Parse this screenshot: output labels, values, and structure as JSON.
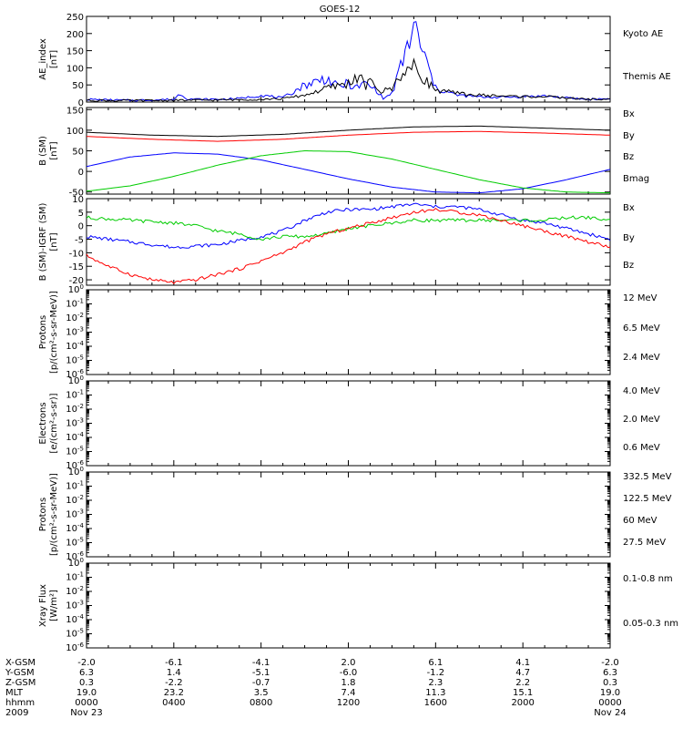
{
  "title": "GOES-12",
  "chart_data": [
    {
      "type": "line",
      "panel": "ae",
      "ylabel": [
        "AE_index",
        "[nT]"
      ],
      "ylim": [
        0,
        250
      ],
      "yticks": [
        "0",
        "50",
        "100",
        "150",
        "200",
        "250"
      ],
      "legend": [
        {
          "name": "Kyoto AE",
          "color": "#0000ff"
        },
        {
          "name": "Themis AE",
          "color": "#000000"
        }
      ],
      "series": [
        {
          "name": "Kyoto AE",
          "color": "#0000ff",
          "x": [
            0,
            1,
            2,
            3,
            4,
            4.3,
            4.6,
            5,
            6,
            7,
            8,
            9,
            10,
            10.5,
            11,
            11.5,
            12,
            12.3,
            12.6,
            12.8,
            13,
            13.3,
            13.6,
            14,
            14.5,
            15,
            16,
            17,
            18,
            19,
            20,
            21,
            22,
            23,
            24
          ],
          "y": [
            8,
            6,
            5,
            6,
            8,
            25,
            10,
            8,
            8,
            10,
            20,
            12,
            50,
            60,
            70,
            45,
            55,
            40,
            50,
            55,
            45,
            35,
            10,
            25,
            120,
            220,
            40,
            20,
            15,
            14,
            16,
            18,
            12,
            8,
            10
          ]
        },
        {
          "name": "Themis AE",
          "color": "#000000",
          "x": [
            0,
            2,
            4,
            6,
            8,
            9,
            10,
            11,
            12,
            12.5,
            12.8,
            13,
            13.5,
            14,
            14.5,
            15,
            16,
            17,
            18,
            19,
            20,
            21,
            22,
            23,
            24
          ],
          "y": [
            5,
            4,
            5,
            6,
            8,
            10,
            20,
            40,
            55,
            75,
            45,
            60,
            30,
            40,
            90,
            100,
            35,
            25,
            20,
            18,
            16,
            16,
            12,
            8,
            8
          ]
        }
      ]
    },
    {
      "type": "line",
      "panel": "bsm",
      "ylabel": [
        "B (SM)",
        "[nT]"
      ],
      "ylim": [
        -55,
        155
      ],
      "yticks": [
        "-50",
        "0",
        "50",
        "100",
        "150"
      ],
      "legend": [
        {
          "name": "Bx",
          "color": "#0000ff"
        },
        {
          "name": "By",
          "color": "#00cc00"
        },
        {
          "name": "Bz",
          "color": "#ff0000"
        },
        {
          "name": "Bmag",
          "color": "#000000"
        }
      ],
      "series": [
        {
          "name": "Bmag",
          "color": "#000000",
          "x": [
            0,
            3,
            6,
            9,
            12,
            15,
            18,
            21,
            24
          ],
          "y": [
            95,
            88,
            85,
            90,
            100,
            108,
            110,
            105,
            100
          ]
        },
        {
          "name": "Bz",
          "color": "#ff0000",
          "x": [
            0,
            3,
            6,
            9,
            12,
            15,
            18,
            21,
            24
          ],
          "y": [
            85,
            78,
            73,
            78,
            88,
            95,
            97,
            93,
            88
          ]
        },
        {
          "name": "Bx",
          "color": "#0000ff",
          "x": [
            0,
            2,
            4,
            6,
            8,
            10,
            12,
            14,
            16,
            18,
            20,
            22,
            24
          ],
          "y": [
            12,
            35,
            45,
            42,
            28,
            5,
            -18,
            -38,
            -50,
            -52,
            -42,
            -20,
            5
          ]
        },
        {
          "name": "By",
          "color": "#00cc00",
          "x": [
            0,
            2,
            4,
            6,
            8,
            10,
            12,
            14,
            16,
            18,
            20,
            22,
            24
          ],
          "y": [
            -48,
            -35,
            -12,
            15,
            38,
            50,
            48,
            30,
            5,
            -20,
            -40,
            -50,
            -52
          ]
        }
      ]
    },
    {
      "type": "line",
      "panel": "bdiff",
      "ylabel": [
        "B (SM)-IGRF (SM)",
        "[nT]"
      ],
      "ylim": [
        -22,
        10
      ],
      "yticks": [
        "-20",
        "-15",
        "-10",
        "-5",
        "0",
        "5",
        "10"
      ],
      "legend": [
        {
          "name": "Bx",
          "color": "#0000ff"
        },
        {
          "name": "By",
          "color": "#00cc00"
        },
        {
          "name": "Bz",
          "color": "#ff0000"
        }
      ],
      "series": [
        {
          "name": "Bx",
          "color": "#0000ff",
          "x": [
            0,
            2,
            4,
            6,
            8,
            9,
            10,
            11,
            12,
            13,
            14,
            15,
            16,
            17,
            18,
            19,
            20,
            21,
            22,
            23,
            24
          ],
          "y": [
            -4,
            -6,
            -8,
            -7,
            -4,
            -2,
            2,
            5,
            6,
            6,
            7,
            8,
            7,
            7,
            6,
            4,
            2,
            1,
            -1,
            -3,
            -5
          ]
        },
        {
          "name": "By",
          "color": "#00cc00",
          "x": [
            0,
            2,
            4,
            5,
            6,
            7,
            8,
            9,
            10,
            11,
            12,
            13,
            14,
            15,
            16,
            17,
            18,
            19,
            20,
            21,
            22,
            23,
            24
          ],
          "y": [
            3,
            2,
            1,
            0,
            -2,
            -3,
            -5,
            -4,
            -4,
            -3,
            -1,
            0,
            1,
            2,
            2,
            2,
            2,
            2,
            2,
            2,
            3,
            3,
            2
          ]
        },
        {
          "name": "Bz",
          "color": "#ff0000",
          "x": [
            0,
            1,
            2,
            3,
            4,
            5,
            6,
            7,
            8,
            9,
            10,
            11,
            12,
            13,
            14,
            15,
            16,
            17,
            18,
            19,
            20,
            21,
            22,
            23,
            24
          ],
          "y": [
            -11,
            -15,
            -18,
            -20,
            -21,
            -20,
            -18,
            -16,
            -13,
            -10,
            -6,
            -3,
            -1,
            1,
            3,
            5,
            6,
            5,
            4,
            2,
            0,
            -2,
            -4,
            -6,
            -8
          ]
        }
      ]
    },
    {
      "type": "line",
      "panel": "protons1",
      "ylabel": [
        "Protons",
        "[p/(cm²-s-sr-MeV)]"
      ],
      "ylog": [
        -6,
        0
      ],
      "legend": [
        {
          "name": "12 MeV",
          "color": "#cc0000"
        },
        {
          "name": "6.5 MeV",
          "color": "#00cc00"
        },
        {
          "name": "2.4 MeV",
          "color": "#000000"
        }
      ],
      "series": []
    },
    {
      "type": "line",
      "panel": "electrons",
      "ylabel": [
        "Electrons",
        "[e/(cm²-s-sr)]"
      ],
      "ylog": [
        -6,
        0
      ],
      "legend": [
        {
          "name": "4.0 MeV",
          "color": "#cc0000"
        },
        {
          "name": "2.0 MeV",
          "color": "#00cc00"
        },
        {
          "name": "0.6 MeV",
          "color": "#000000"
        }
      ],
      "series": []
    },
    {
      "type": "line",
      "panel": "protons2",
      "ylabel": [
        "Protons",
        "[p/(cm²-s-sr-MeV)]"
      ],
      "ylog": [
        -6,
        0
      ],
      "legend": [
        {
          "name": "332.5 MeV",
          "color": "#cc0000"
        },
        {
          "name": "122.5 MeV",
          "color": "#ffdd00"
        },
        {
          "name": "60 MeV",
          "color": "#00aaff"
        },
        {
          "name": "27.5 MeV",
          "color": "#000000"
        }
      ],
      "series": []
    },
    {
      "type": "line",
      "panel": "xray",
      "ylabel": [
        "Xray Flux",
        "[W/m²]"
      ],
      "ylog": [
        -6,
        0
      ],
      "legend": [
        {
          "name": "0.1-0.8 nm",
          "color": "#cc0000"
        },
        {
          "name": "0.05-0.3 nm",
          "color": "#0000cc"
        }
      ],
      "series": []
    }
  ],
  "ephemeris": {
    "labels": [
      "X-GSM",
      "Y-GSM",
      "Z-GSM",
      "MLT",
      "hhmm",
      "2009"
    ],
    "columns": [
      [
        "-2.0",
        "6.3",
        "0.3",
        "19.0",
        "0000",
        "Nov 23"
      ],
      [
        "-6.1",
        "1.4",
        "-2.2",
        "23.2",
        "0400",
        ""
      ],
      [
        "-4.1",
        "-5.1",
        "-0.7",
        "3.5",
        "0800",
        ""
      ],
      [
        "2.0",
        "-6.0",
        "1.8",
        "7.4",
        "1200",
        ""
      ],
      [
        "6.1",
        "-1.2",
        "2.3",
        "11.3",
        "1600",
        ""
      ],
      [
        "4.1",
        "4.7",
        "2.2",
        "15.1",
        "2000",
        ""
      ],
      [
        "-2.0",
        "6.3",
        "0.3",
        "19.0",
        "0000",
        "Nov 24"
      ]
    ]
  }
}
